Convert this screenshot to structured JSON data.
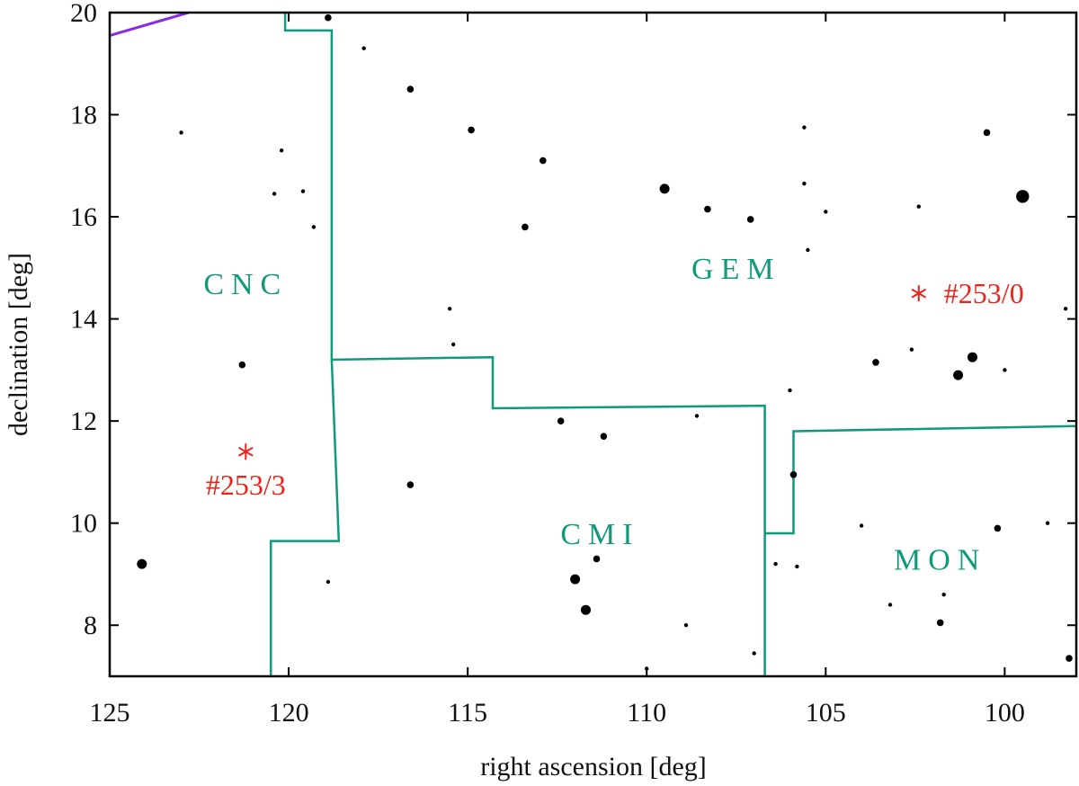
{
  "chart_data": {
    "type": "scatter",
    "xlabel": "right ascension [deg]",
    "ylabel": "declination [deg]",
    "xlim": [
      125,
      98
    ],
    "ylim": [
      7,
      20
    ],
    "x_reversed": true,
    "grid": false,
    "xticks": [
      125,
      120,
      115,
      110,
      105,
      100
    ],
    "yticks": [
      8,
      10,
      12,
      14,
      16,
      18,
      20
    ],
    "colors": {
      "stars": "#000000",
      "boundaries": "#0f9a7a",
      "markers": "#e8251b",
      "ecliptic": "#8a2be2",
      "axes": "#000000"
    },
    "stars": [
      {
        "ra": 124.1,
        "dec": 9.2,
        "size": "large"
      },
      {
        "ra": 123.0,
        "dec": 17.65,
        "size": "small"
      },
      {
        "ra": 121.3,
        "dec": 13.1,
        "size": "medium"
      },
      {
        "ra": 120.2,
        "dec": 17.3,
        "size": "small"
      },
      {
        "ra": 120.4,
        "dec": 16.45,
        "size": "small"
      },
      {
        "ra": 119.6,
        "dec": 16.5,
        "size": "small"
      },
      {
        "ra": 119.3,
        "dec": 15.8,
        "size": "small"
      },
      {
        "ra": 118.9,
        "dec": 19.9,
        "size": "medium"
      },
      {
        "ra": 118.9,
        "dec": 8.85,
        "size": "small"
      },
      {
        "ra": 117.9,
        "dec": 19.3,
        "size": "small"
      },
      {
        "ra": 116.6,
        "dec": 18.5,
        "size": "medium"
      },
      {
        "ra": 116.6,
        "dec": 10.75,
        "size": "medium"
      },
      {
        "ra": 115.5,
        "dec": 14.2,
        "size": "small"
      },
      {
        "ra": 115.4,
        "dec": 13.5,
        "size": "small"
      },
      {
        "ra": 114.9,
        "dec": 17.7,
        "size": "medium"
      },
      {
        "ra": 113.4,
        "dec": 15.8,
        "size": "medium"
      },
      {
        "ra": 112.9,
        "dec": 17.1,
        "size": "medium"
      },
      {
        "ra": 112.4,
        "dec": 12.0,
        "size": "medium"
      },
      {
        "ra": 112.0,
        "dec": 8.9,
        "size": "large"
      },
      {
        "ra": 111.7,
        "dec": 8.3,
        "size": "large"
      },
      {
        "ra": 111.4,
        "dec": 9.3,
        "size": "medium"
      },
      {
        "ra": 111.2,
        "dec": 11.7,
        "size": "medium"
      },
      {
        "ra": 109.5,
        "dec": 16.55,
        "size": "large"
      },
      {
        "ra": 110.0,
        "dec": 7.15,
        "size": "small"
      },
      {
        "ra": 108.9,
        "dec": 8.0,
        "size": "small"
      },
      {
        "ra": 108.6,
        "dec": 12.1,
        "size": "small"
      },
      {
        "ra": 108.3,
        "dec": 16.15,
        "size": "medium"
      },
      {
        "ra": 107.1,
        "dec": 15.95,
        "size": "medium"
      },
      {
        "ra": 107.0,
        "dec": 7.45,
        "size": "small"
      },
      {
        "ra": 106.0,
        "dec": 12.6,
        "size": "small"
      },
      {
        "ra": 105.9,
        "dec": 10.95,
        "size": "medium"
      },
      {
        "ra": 106.4,
        "dec": 9.2,
        "size": "small"
      },
      {
        "ra": 105.8,
        "dec": 9.15,
        "size": "small"
      },
      {
        "ra": 105.6,
        "dec": 17.75,
        "size": "small"
      },
      {
        "ra": 105.6,
        "dec": 16.65,
        "size": "small"
      },
      {
        "ra": 105.5,
        "dec": 15.35,
        "size": "small"
      },
      {
        "ra": 105.0,
        "dec": 16.1,
        "size": "small"
      },
      {
        "ra": 104.0,
        "dec": 9.95,
        "size": "small"
      },
      {
        "ra": 103.6,
        "dec": 13.15,
        "size": "medium"
      },
      {
        "ra": 103.2,
        "dec": 8.4,
        "size": "small"
      },
      {
        "ra": 102.6,
        "dec": 13.4,
        "size": "small"
      },
      {
        "ra": 102.4,
        "dec": 16.2,
        "size": "small"
      },
      {
        "ra": 101.8,
        "dec": 8.05,
        "size": "medium"
      },
      {
        "ra": 101.7,
        "dec": 8.6,
        "size": "small"
      },
      {
        "ra": 101.3,
        "dec": 12.9,
        "size": "large"
      },
      {
        "ra": 100.9,
        "dec": 13.25,
        "size": "large"
      },
      {
        "ra": 100.5,
        "dec": 17.65,
        "size": "medium"
      },
      {
        "ra": 100.2,
        "dec": 9.9,
        "size": "medium"
      },
      {
        "ra": 100.0,
        "dec": 13.0,
        "size": "small"
      },
      {
        "ra": 99.5,
        "dec": 16.4,
        "size": "xlarge"
      },
      {
        "ra": 98.8,
        "dec": 10.0,
        "size": "small"
      },
      {
        "ra": 98.3,
        "dec": 14.2,
        "size": "small"
      },
      {
        "ra": 98.2,
        "dec": 7.35,
        "size": "medium"
      }
    ],
    "boundaries": [
      {
        "points": [
          [
            120.1,
            20.0
          ],
          [
            120.1,
            19.65
          ],
          [
            118.8,
            19.65
          ],
          [
            118.8,
            13.2
          ],
          [
            114.3,
            13.25
          ],
          [
            114.3,
            12.25
          ],
          [
            106.7,
            12.3
          ],
          [
            106.7,
            7.0
          ]
        ]
      },
      {
        "points": [
          [
            118.8,
            13.2
          ],
          [
            118.6,
            9.65
          ],
          [
            120.5,
            9.65
          ],
          [
            120.5,
            7.0
          ]
        ]
      },
      {
        "points": [
          [
            106.7,
            9.8
          ],
          [
            105.9,
            9.8
          ],
          [
            105.9,
            11.8
          ],
          [
            98.0,
            11.9
          ]
        ]
      }
    ],
    "ecliptic": [
      [
        125.0,
        19.55
      ],
      [
        122.8,
        20.0
      ]
    ],
    "region_labels": [
      {
        "text": "CNC",
        "ra": 121.2,
        "dec": 14.7
      },
      {
        "text": "GEM",
        "ra": 107.5,
        "dec": 15.0
      },
      {
        "text": "CMI",
        "ra": 111.3,
        "dec": 9.8
      },
      {
        "text": "MON",
        "ra": 101.8,
        "dec": 9.3
      }
    ],
    "markers": [
      {
        "label": "#253/0",
        "ra": 102.4,
        "dec": 14.5
      },
      {
        "label": "#253/3",
        "ra": 121.2,
        "dec": 11.4
      }
    ]
  }
}
